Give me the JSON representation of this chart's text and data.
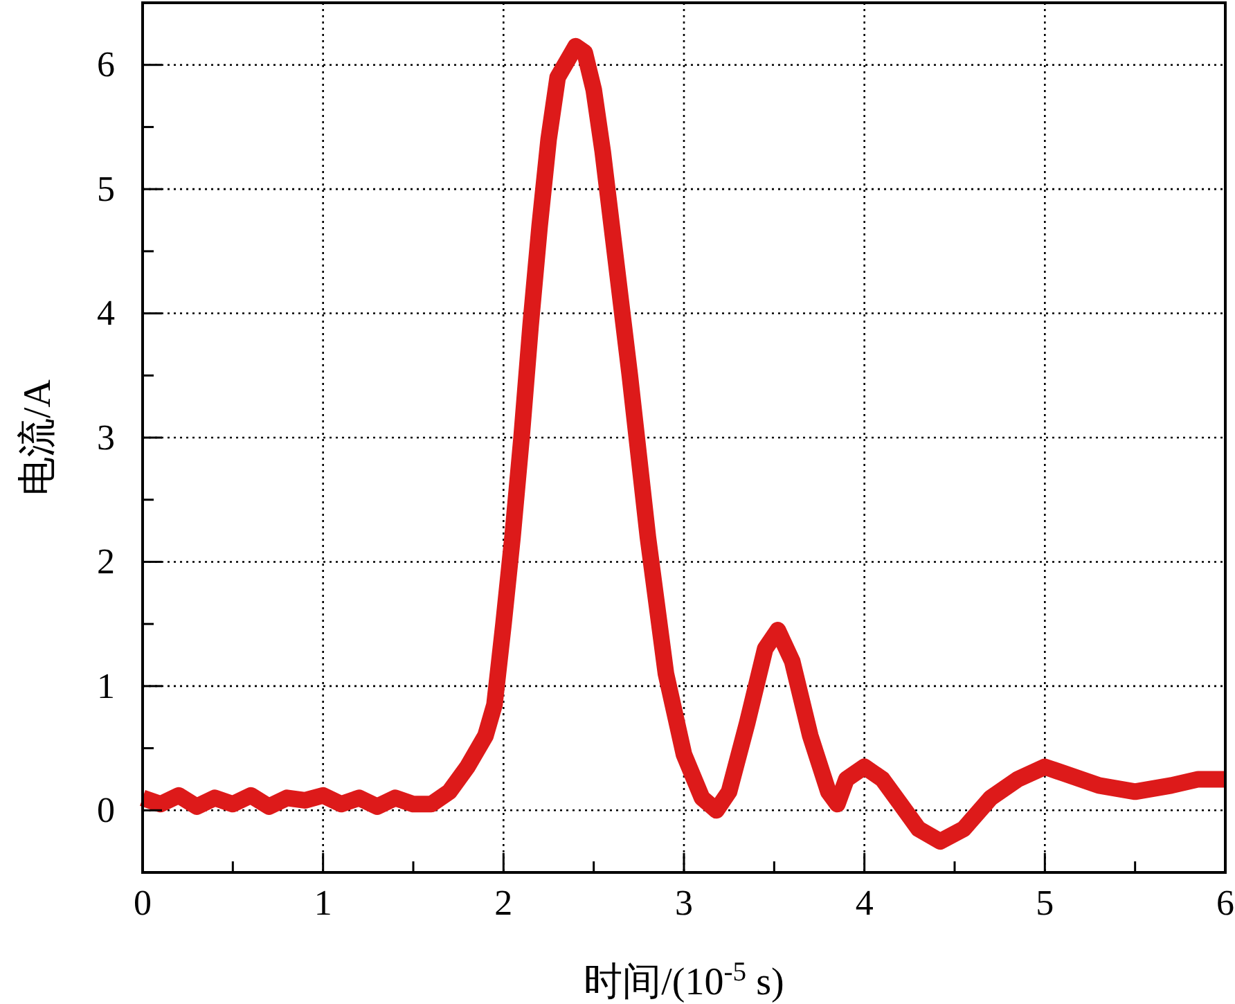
{
  "chart_data": {
    "type": "line",
    "xlabel": "时间/(10$^{-5}$ s)",
    "ylabel": "电流/A",
    "xlim": [
      0,
      6
    ],
    "ylim": [
      -0.5,
      6.5
    ],
    "xticks": [
      0,
      {
        "value": 0.5,
        "label": null
      },
      1,
      {
        "value": 1.5,
        "label": null
      },
      2,
      {
        "value": 2.5,
        "label": null
      },
      3,
      {
        "value": 3.5,
        "label": null
      },
      4,
      {
        "value": 4.5,
        "label": null
      },
      5,
      {
        "value": 5.5,
        "label": null
      },
      6
    ],
    "yticks": [
      0,
      {
        "value": 0.5,
        "label": null
      },
      1,
      {
        "value": 1.5,
        "label": null
      },
      2,
      {
        "value": 2.5,
        "label": null
      },
      3,
      {
        "value": 3.5,
        "label": null
      },
      4,
      {
        "value": 4.5,
        "label": null
      },
      5,
      {
        "value": 5.5,
        "label": null
      },
      6
    ],
    "grid": true,
    "line_style": "solid",
    "marker": "none",
    "series": [
      {
        "color": "#dd1a1a",
        "x": [
          0,
          0.1,
          0.2,
          0.3,
          0.4,
          0.5,
          0.6,
          0.7,
          0.8,
          0.9,
          1.0,
          1.1,
          1.2,
          1.3,
          1.4,
          1.5,
          1.6,
          1.7,
          1.8,
          1.9,
          1.95,
          2.0,
          2.05,
          2.1,
          2.15,
          2.2,
          2.25,
          2.3,
          2.4,
          2.45,
          2.5,
          2.55,
          2.6,
          2.7,
          2.8,
          2.9,
          3.0,
          3.1,
          3.18,
          3.25,
          3.35,
          3.45,
          3.52,
          3.6,
          3.7,
          3.8,
          3.85,
          3.9,
          4.0,
          4.1,
          4.2,
          4.3,
          4.42,
          4.55,
          4.7,
          4.85,
          5.0,
          5.1,
          5.3,
          5.5,
          5.7,
          5.85,
          6.0
        ],
        "values": [
          0.1,
          0.05,
          0.12,
          0.03,
          0.1,
          0.05,
          0.12,
          0.03,
          0.1,
          0.08,
          0.12,
          0.05,
          0.1,
          0.03,
          0.1,
          0.05,
          0.05,
          0.15,
          0.35,
          0.6,
          0.85,
          1.5,
          2.2,
          3.0,
          3.9,
          4.7,
          5.4,
          5.9,
          6.15,
          6.1,
          5.8,
          5.3,
          4.7,
          3.5,
          2.2,
          1.1,
          0.45,
          0.1,
          0.0,
          0.15,
          0.7,
          1.3,
          1.45,
          1.2,
          0.6,
          0.15,
          0.05,
          0.25,
          0.35,
          0.25,
          0.05,
          -0.15,
          -0.25,
          -0.15,
          0.1,
          0.25,
          0.35,
          0.3,
          0.2,
          0.15,
          0.2,
          0.25,
          0.25
        ]
      }
    ]
  }
}
